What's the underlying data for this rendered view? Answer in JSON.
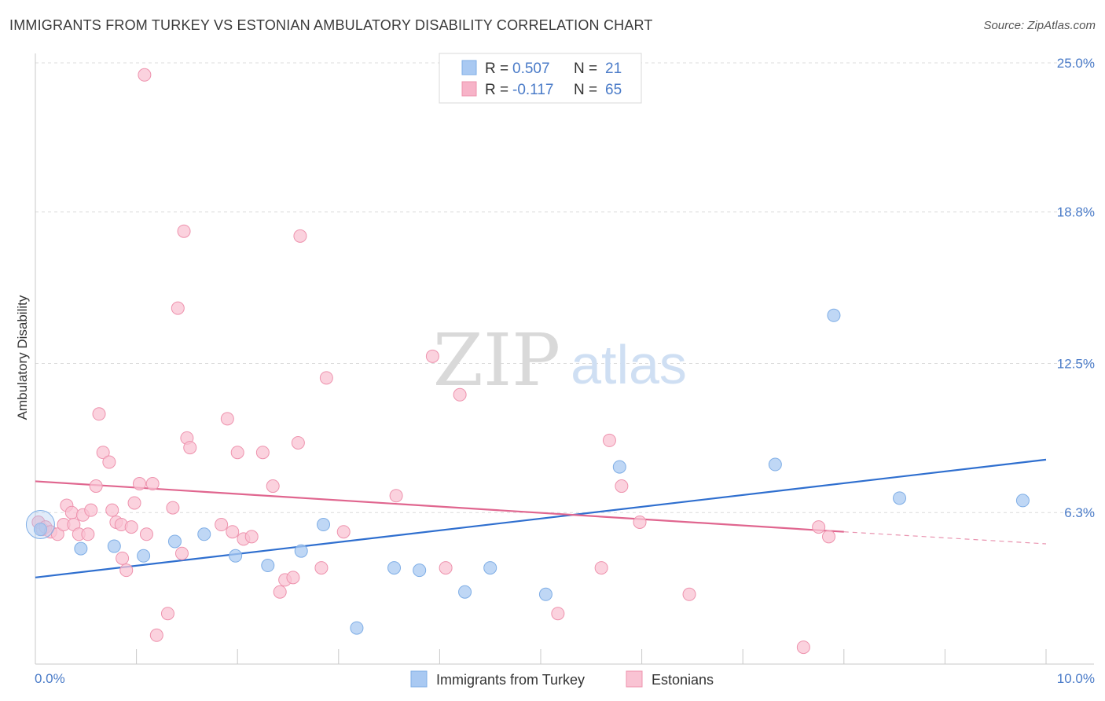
{
  "title": "IMMIGRANTS FROM TURKEY VS ESTONIAN AMBULATORY DISABILITY CORRELATION CHART",
  "source": "Source: ZipAtlas.com",
  "watermark": {
    "zip": "ZIP",
    "atlas": "atlas"
  },
  "chart_data": {
    "type": "scatter",
    "ylabel": "Ambulatory Disability",
    "xlabel": "",
    "xlim": [
      0.0,
      10.0
    ],
    "ylim": [
      0.0,
      25.0
    ],
    "x_tick_labels": [
      "0.0%",
      "10.0%"
    ],
    "y_ticks": [
      6.3,
      12.5,
      18.8,
      25.0
    ],
    "y_tick_labels": [
      "6.3%",
      "12.5%",
      "18.8%",
      "25.0%"
    ],
    "grid": "horizontal dashed",
    "legend_top": [
      {
        "r_label": "R =",
        "r_value": "0.507",
        "n_label": "N =",
        "n_value": "21",
        "color": "#a9c9f2"
      },
      {
        "r_label": "R =",
        "r_value": "-0.117",
        "n_label": "N =",
        "n_value": "65",
        "color": "#f7b3c8"
      }
    ],
    "series": [
      {
        "name": "Immigrants from Turkey",
        "color": "#a9c9f2",
        "stroke": "#7faee6",
        "trend_color": "#2f6fcf",
        "trend": {
          "x0": 0.0,
          "y0": 3.6,
          "x1": 10.0,
          "y1": 8.5
        },
        "points": [
          [
            0.05,
            5.6
          ],
          [
            0.45,
            4.8
          ],
          [
            0.78,
            4.9
          ],
          [
            1.07,
            4.5
          ],
          [
            1.38,
            5.1
          ],
          [
            1.67,
            5.4
          ],
          [
            1.98,
            4.5
          ],
          [
            2.3,
            4.1
          ],
          [
            2.63,
            4.7
          ],
          [
            2.85,
            5.8
          ],
          [
            3.18,
            1.5
          ],
          [
            3.55,
            4.0
          ],
          [
            3.8,
            3.9
          ],
          [
            4.25,
            3.0
          ],
          [
            4.5,
            4.0
          ],
          [
            5.05,
            2.9
          ],
          [
            5.78,
            8.2
          ],
          [
            7.32,
            8.3
          ],
          [
            7.9,
            14.5
          ],
          [
            8.55,
            6.9
          ],
          [
            9.77,
            6.8
          ]
        ]
      },
      {
        "name": "Estonians",
        "color": "#f9c3d3",
        "stroke": "#ee93ae",
        "trend_color": "#e0668f",
        "trend": {
          "x0": 0.0,
          "y0": 7.6,
          "x1": 8.0,
          "y1": 5.5
        },
        "trend_dash": {
          "x0": 8.0,
          "y0": 5.5,
          "x1": 10.0,
          "y1": 5.0
        },
        "points": [
          [
            0.03,
            5.9
          ],
          [
            0.07,
            5.6
          ],
          [
            0.1,
            5.7
          ],
          [
            0.15,
            5.5
          ],
          [
            0.22,
            5.4
          ],
          [
            0.28,
            5.8
          ],
          [
            0.31,
            6.6
          ],
          [
            0.36,
            6.3
          ],
          [
            0.38,
            5.8
          ],
          [
            0.43,
            5.4
          ],
          [
            0.47,
            6.2
          ],
          [
            0.52,
            5.4
          ],
          [
            0.55,
            6.4
          ],
          [
            0.6,
            7.4
          ],
          [
            0.63,
            10.4
          ],
          [
            0.67,
            8.8
          ],
          [
            0.73,
            8.4
          ],
          [
            0.76,
            6.4
          ],
          [
            0.8,
            5.9
          ],
          [
            0.85,
            5.8
          ],
          [
            0.86,
            4.4
          ],
          [
            0.9,
            3.9
          ],
          [
            0.95,
            5.7
          ],
          [
            0.98,
            6.7
          ],
          [
            1.03,
            7.5
          ],
          [
            1.08,
            24.5
          ],
          [
            1.1,
            5.4
          ],
          [
            1.16,
            7.5
          ],
          [
            1.2,
            1.2
          ],
          [
            1.31,
            2.1
          ],
          [
            1.36,
            6.5
          ],
          [
            1.41,
            14.8
          ],
          [
            1.45,
            4.6
          ],
          [
            1.47,
            18.0
          ],
          [
            1.5,
            9.4
          ],
          [
            1.53,
            9.0
          ],
          [
            1.84,
            5.8
          ],
          [
            1.9,
            10.2
          ],
          [
            1.95,
            5.5
          ],
          [
            2.0,
            8.8
          ],
          [
            2.06,
            5.2
          ],
          [
            2.14,
            5.3
          ],
          [
            2.25,
            8.8
          ],
          [
            2.35,
            7.4
          ],
          [
            2.42,
            3.0
          ],
          [
            2.47,
            3.5
          ],
          [
            2.55,
            3.6
          ],
          [
            2.6,
            9.2
          ],
          [
            2.62,
            17.8
          ],
          [
            2.83,
            4.0
          ],
          [
            2.88,
            11.9
          ],
          [
            3.05,
            5.5
          ],
          [
            3.57,
            7.0
          ],
          [
            3.93,
            12.8
          ],
          [
            4.06,
            4.0
          ],
          [
            4.2,
            11.2
          ],
          [
            5.17,
            2.1
          ],
          [
            5.6,
            4.0
          ],
          [
            5.68,
            9.3
          ],
          [
            5.8,
            7.4
          ],
          [
            5.98,
            5.9
          ],
          [
            6.47,
            2.9
          ],
          [
            7.6,
            0.7
          ],
          [
            7.85,
            5.3
          ],
          [
            7.75,
            5.7
          ]
        ]
      }
    ]
  }
}
